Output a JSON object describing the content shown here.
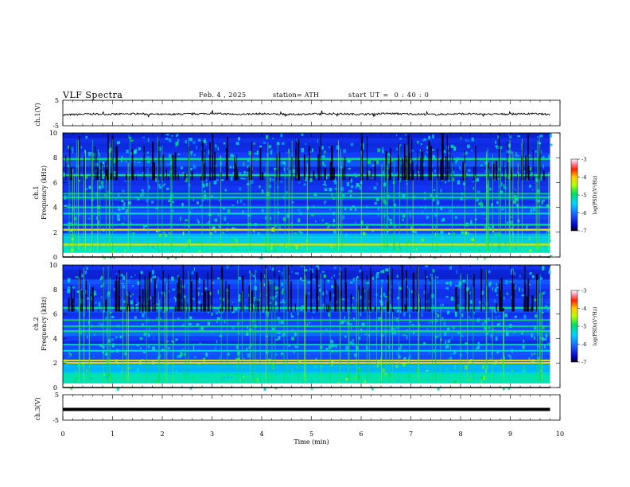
{
  "header": {
    "title": "VLF Spectra",
    "date": "Feb. 4 , 2025",
    "station": "station= ATH",
    "start_ut": "start UT =  0 : 40 : 0"
  },
  "chart_data": [
    {
      "type": "line",
      "panel": "ch1-voltage",
      "ylabel": "ch.1(V)",
      "ylim": [
        -5,
        5
      ],
      "y_ticks": [
        "5",
        "-5"
      ],
      "x": [
        0,
        0.5,
        1,
        1.5,
        2,
        2.5,
        3,
        3.5,
        4,
        4.5,
        5,
        5.5,
        6,
        6.5,
        7,
        7.5,
        8,
        8.5,
        9,
        9.5,
        9.8
      ],
      "y": [
        -0.8,
        -0.4,
        -0.5,
        -0.3,
        -0.6,
        -0.4,
        -0.2,
        -0.5,
        -0.3,
        -0.6,
        -0.4,
        -0.3,
        -0.5,
        -0.2,
        -0.4,
        -0.6,
        -0.3,
        -0.5,
        -0.4,
        -0.3,
        -0.6
      ],
      "color": "#000000"
    },
    {
      "type": "heatmap",
      "panel": "ch1-spectrogram",
      "ylabel_top": "ch.1",
      "ylabel": "Frequency  (kHz)",
      "ylim": [
        0,
        10
      ],
      "y_ticks": [
        "0",
        "2",
        "4",
        "6",
        "8",
        "10"
      ],
      "xlim": [
        0,
        9.8
      ],
      "colorbar": {
        "label": "log(PSD)(V²/Hz)",
        "ticks": [
          "-3",
          "-4",
          "-5",
          "-6",
          "-7"
        ],
        "range": [
          -7,
          -3
        ]
      },
      "strong_bands_khz": [
        0.3,
        1.0,
        2.2,
        2.6,
        6.6,
        7.9
      ],
      "weak_bands_khz": [
        1.6,
        3.5,
        4.0,
        4.8,
        5.1
      ]
    },
    {
      "type": "heatmap",
      "panel": "ch2-spectrogram",
      "ylabel_top": "ch.2",
      "ylabel": "Frequency  (kHz)",
      "ylim": [
        0,
        10
      ],
      "y_ticks": [
        "0",
        "2",
        "4",
        "6",
        "8",
        "10"
      ],
      "xlim": [
        0,
        9.8
      ],
      "colorbar": {
        "label": "log(PSD)(V²/Hz)",
        "ticks": [
          "-3",
          "-4",
          "-5",
          "-6",
          "-7"
        ],
        "range": [
          -7,
          -3
        ]
      },
      "strong_bands_khz": [
        0.3,
        2.0,
        2.2,
        4.6,
        6.5
      ],
      "weak_bands_khz": [
        1.2,
        3.0,
        3.5,
        5.0,
        5.5
      ]
    },
    {
      "type": "line",
      "panel": "ch3-voltage",
      "ylabel": "ch.3(V)",
      "ylim": [
        -5,
        5
      ],
      "y_ticks": [
        "5",
        "-5"
      ],
      "x": [
        0,
        9.8
      ],
      "y": [
        -0.8,
        -0.8
      ],
      "color": "#000000"
    }
  ],
  "x_axis": {
    "label": "Time  (min)",
    "range": [
      0,
      10
    ],
    "ticks": [
      "0",
      "1",
      "2",
      "3",
      "4",
      "5",
      "6",
      "7",
      "8",
      "9",
      "10"
    ]
  }
}
